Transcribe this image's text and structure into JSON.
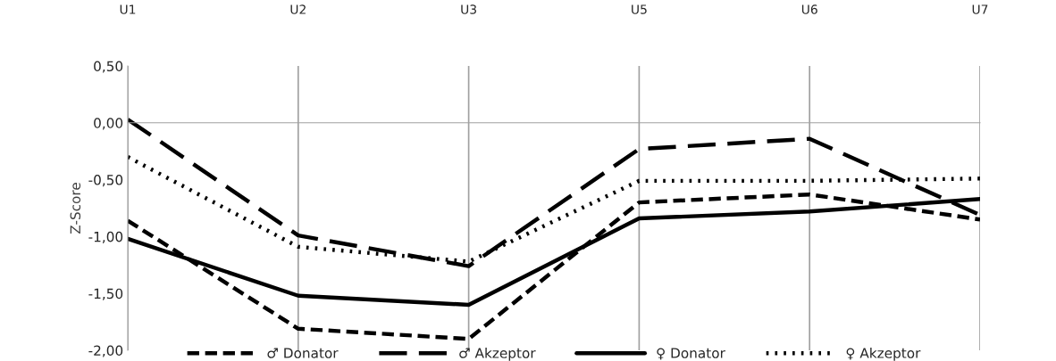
{
  "chart_data": {
    "type": "line",
    "ylabel": "Z-Score",
    "categories": [
      "U1",
      "U2",
      "U3",
      "U5",
      "U6",
      "U7"
    ],
    "series": [
      {
        "name": "♂ Donator",
        "color": "#000000",
        "line_style": "dashed",
        "values": [
          -0.86,
          -1.81,
          -1.9,
          -0.7,
          -0.63,
          -0.85
        ]
      },
      {
        "name": "♂ Akzeptor",
        "color": "#000000",
        "line_style": "longdash",
        "values": [
          0.03,
          -0.99,
          -1.26,
          -0.23,
          -0.14,
          -0.81
        ]
      },
      {
        "name": "♀ Donator",
        "color": "#000000",
        "line_style": "solid",
        "values": [
          -1.02,
          -1.52,
          -1.6,
          -0.84,
          -0.78,
          -0.67
        ]
      },
      {
        "name": "♀ Akzeptor",
        "color": "#000000",
        "line_style": "dotted",
        "values": [
          -0.3,
          -1.09,
          -1.22,
          -0.51,
          -0.51,
          -0.49
        ]
      }
    ],
    "ylim": [
      -2.0,
      0.5
    ],
    "yticks": [
      {
        "value": -2.0,
        "label": "-2,00"
      },
      {
        "value": -1.5,
        "label": "-1,50"
      },
      {
        "value": -1.0,
        "label": "-1,00"
      },
      {
        "value": -0.5,
        "label": "-0,50"
      },
      {
        "value": 0.0,
        "label": "0,00"
      },
      {
        "value": 0.5,
        "label": "0,50"
      }
    ],
    "grid": "x",
    "legend": "bottom",
    "marker": "none"
  }
}
